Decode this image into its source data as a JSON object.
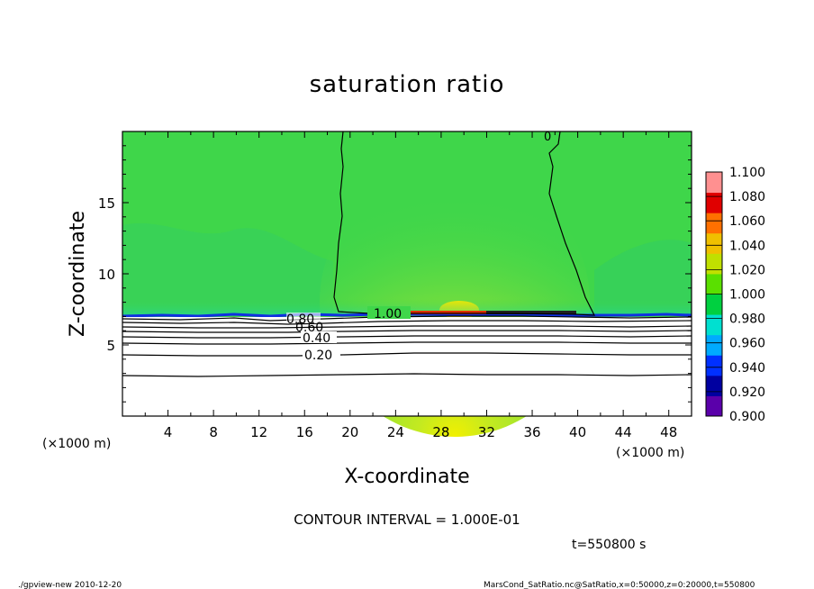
{
  "chart_data": {
    "type": "heatmap",
    "title": "saturation ratio",
    "xlabel": "X-coordinate",
    "ylabel": "Z-coordinate",
    "x_unit": "(×1000 m)",
    "x_unit_left": "(×1000 m)",
    "x_ticks": [
      "4",
      "8",
      "12",
      "16",
      "20",
      "24",
      "28",
      "32",
      "36",
      "40",
      "44",
      "48"
    ],
    "y_ticks": [
      "5",
      "10",
      "15"
    ],
    "xlim": [
      0,
      50
    ],
    "ylim": [
      0,
      20
    ],
    "colorbar": {
      "labels": [
        "0.900",
        "0.920",
        "0.940",
        "0.960",
        "0.980",
        "1.000",
        "1.020",
        "1.040",
        "1.060",
        "1.080",
        "1.100"
      ],
      "colors": [
        "#5a00aa",
        "#0000a0",
        "#0030ff",
        "#00aaff",
        "#00e0d0",
        "#00d040",
        "#5ae000",
        "#c0e000",
        "#f0c000",
        "#ff7000",
        "#e00000",
        "#ff9090"
      ]
    },
    "contours": [
      {
        "label": "1.00",
        "value": 1.0
      },
      {
        "label": "0.80",
        "value": 0.8
      },
      {
        "label": "0.60",
        "value": 0.6
      },
      {
        "label": "0.40",
        "value": 0.4
      },
      {
        "label": "0.20",
        "value": 0.2
      },
      {
        "label": "0",
        "value": 0
      }
    ],
    "contour_interval": "CONTOUR INTERVAL = 1.000E-01",
    "time_label": "t=550800 s"
  },
  "footer": {
    "left": "./gpview-new  2010-12-20",
    "right": "MarsCond_SatRatio.nc@SatRatio,x=0:50000,z=0:20000,t=550800"
  },
  "colors": {
    "field_green": "#3fd64a",
    "field_light": "#7ae040",
    "hot_core": "#f0e000",
    "axis": "#000000"
  }
}
